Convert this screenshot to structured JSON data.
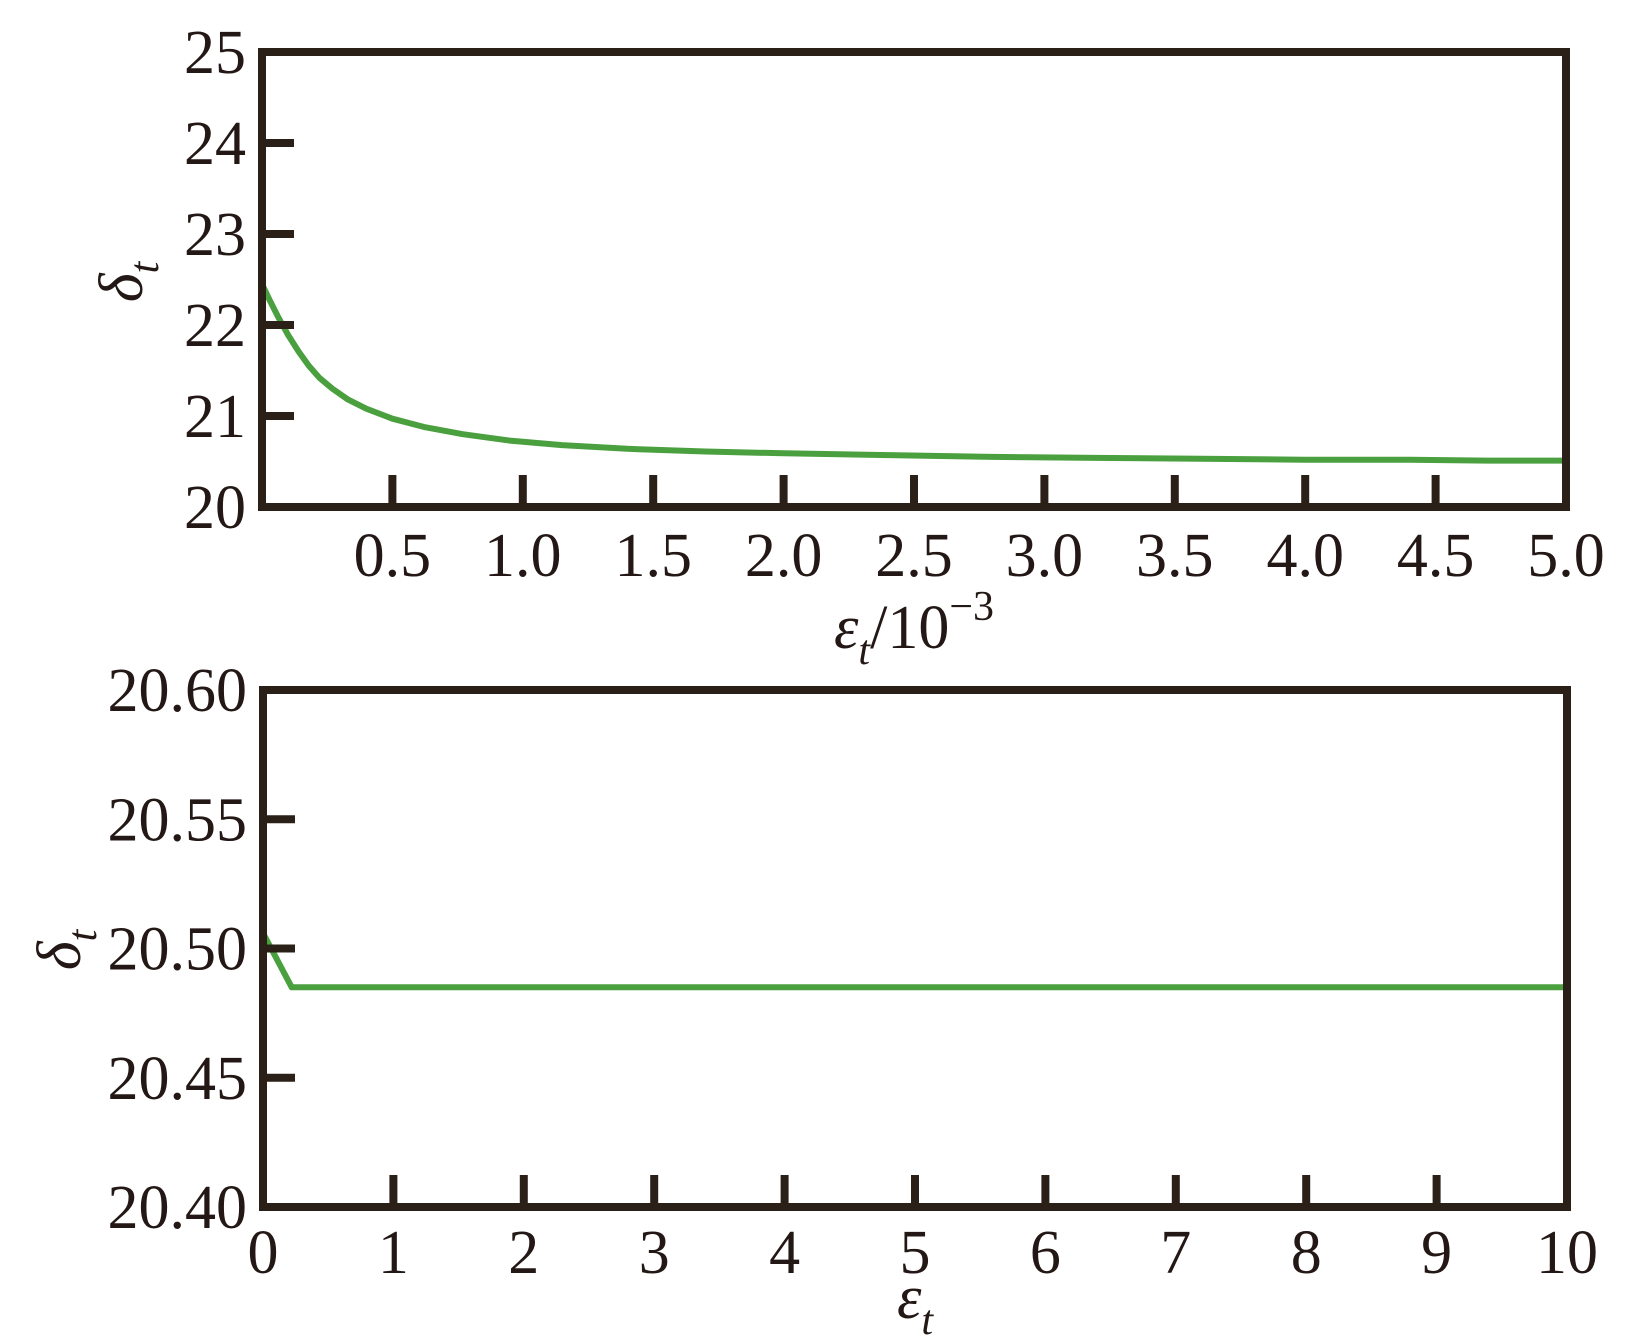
{
  "figure": {
    "background": "#ffffff",
    "description": "Two stacked line plots of convergence tolerance study"
  },
  "colors": {
    "curve": "#4aa03e",
    "axis": "#2b2017",
    "text": "#231815"
  },
  "chart_data": [
    {
      "type": "line",
      "title": "",
      "xlabel": {
        "symbol": "ε",
        "subscript": "t",
        "suffix": "/10",
        "superscript": "−3"
      },
      "ylabel": {
        "symbol": "δ",
        "subscript": "t"
      },
      "xlim": [
        0,
        5
      ],
      "ylim": [
        20,
        25
      ],
      "grid": false,
      "legend": "none",
      "xticks": [
        0.5,
        1.0,
        1.5,
        2.0,
        2.5,
        3.0,
        3.5,
        4.0,
        4.5,
        5.0
      ],
      "xtick_labels": [
        "0.5",
        "1.0",
        "1.5",
        "2.0",
        "2.5",
        "3.0",
        "3.5",
        "4.0",
        "4.5",
        "5.0"
      ],
      "yticks": [
        20,
        21,
        22,
        23,
        24,
        25
      ],
      "ytick_labels": [
        "20",
        "21",
        "22",
        "23",
        "24",
        "25"
      ],
      "series": [
        {
          "name": "delta-t-vs-epsilon-zoomed",
          "x": [
            0,
            0.03,
            0.06,
            0.1,
            0.14,
            0.18,
            0.22,
            0.27,
            0.33,
            0.4,
            0.5,
            0.62,
            0.77,
            0.95,
            1.15,
            1.4,
            1.7,
            2.0,
            2.4,
            2.8,
            3.2,
            3.6,
            4.0,
            4.4,
            4.7,
            5.0
          ],
          "y": [
            22.45,
            22.27,
            22.1,
            21.89,
            21.71,
            21.55,
            21.42,
            21.3,
            21.18,
            21.08,
            20.97,
            20.88,
            20.8,
            20.73,
            20.68,
            20.64,
            20.61,
            20.59,
            20.57,
            20.55,
            20.54,
            20.53,
            20.52,
            20.52,
            20.51,
            20.51
          ]
        }
      ]
    },
    {
      "type": "line",
      "title": "",
      "xlabel": {
        "symbol": "ε",
        "subscript": "t",
        "suffix": "",
        "superscript": ""
      },
      "ylabel": {
        "symbol": "δ",
        "subscript": "t"
      },
      "xlim": [
        0,
        10
      ],
      "ylim": [
        20.4,
        20.6
      ],
      "grid": false,
      "legend": "none",
      "xticks": [
        0,
        1,
        2,
        3,
        4,
        5,
        6,
        7,
        8,
        9,
        10
      ],
      "xtick_labels": [
        "0",
        "1",
        "2",
        "3",
        "4",
        "5",
        "6",
        "7",
        "8",
        "9",
        "10"
      ],
      "yticks": [
        20.4,
        20.45,
        20.5,
        20.55,
        20.6
      ],
      "ytick_labels": [
        "20.40",
        "20.45",
        "20.50",
        "20.55",
        "20.60"
      ],
      "series": [
        {
          "name": "delta-t-vs-epsilon-full",
          "x": [
            0,
            0.22,
            0.5,
            1,
            1.5,
            2,
            3,
            4,
            5,
            6,
            7,
            8,
            9,
            10
          ],
          "y": [
            20.506,
            20.485,
            20.485,
            20.485,
            20.485,
            20.485,
            20.485,
            20.485,
            20.485,
            20.485,
            20.485,
            20.485,
            20.485,
            20.485
          ]
        }
      ]
    }
  ]
}
